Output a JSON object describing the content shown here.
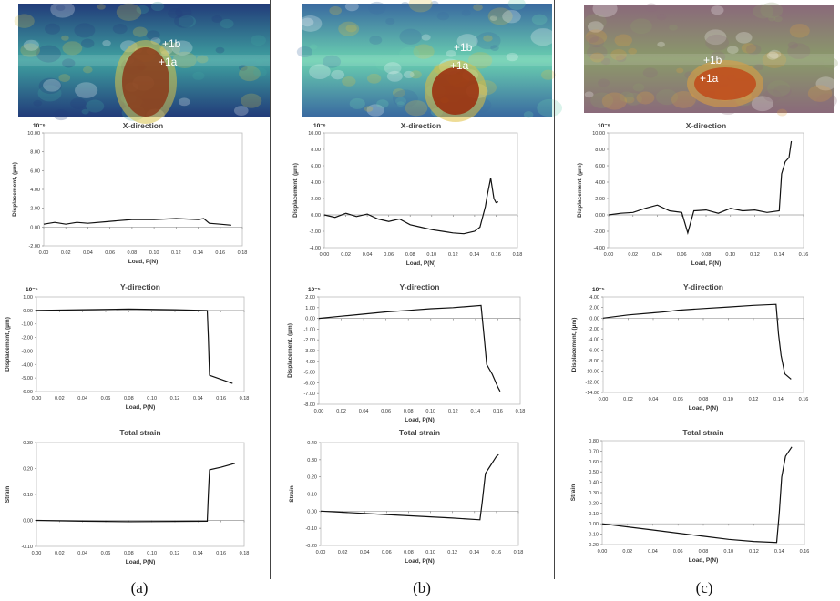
{
  "figure": {
    "captions": [
      "(a)",
      "(b)",
      "(c)"
    ],
    "point_labels": [
      "+1b",
      "+1a"
    ],
    "heatmap_colors": {
      "a": {
        "base": "#223c7a",
        "hot": "#8a3a1a",
        "warm": "#d9c24a",
        "cool": "#3fa2a0"
      },
      "b": {
        "base": "#3a6aa0",
        "hot": "#9a2a0a",
        "warm": "#e0c040",
        "cool": "#6ad0b0"
      },
      "c": {
        "base": "#8a6a7a",
        "hot": "#c04a1a",
        "warm": "#e0a040",
        "cool": "#8a9a6a"
      }
    }
  },
  "chart_data": [
    {
      "id": "a-x",
      "type": "line",
      "title": "X-direction",
      "multiplier": "10⁻⁶",
      "xlabel": "Load, P(N)",
      "ylabel": "Displacement, (µm)",
      "xlim": [
        0,
        0.18
      ],
      "xticks": [
        0,
        0.02,
        0.04,
        0.06,
        0.08,
        0.1,
        0.12,
        0.14,
        0.16,
        0.18
      ],
      "xtick_labels": [
        "0.00",
        "0.02",
        "0.04",
        "0.06",
        "0.08",
        "0.10",
        "0.12",
        "0.14",
        "0.16",
        "0.18"
      ],
      "ylim": [
        -2,
        10
      ],
      "yticks": [
        -2,
        0,
        2,
        4,
        6,
        8,
        10
      ],
      "ytick_labels": [
        "-2.00",
        "0.00",
        "2.00",
        "4.00",
        "6.00",
        "8.00",
        "10.00"
      ],
      "series": [
        {
          "name": "X-direction",
          "x": [
            0,
            0.01,
            0.02,
            0.03,
            0.04,
            0.06,
            0.08,
            0.1,
            0.12,
            0.14,
            0.145,
            0.15,
            0.16,
            0.17
          ],
          "y": [
            0.3,
            0.5,
            0.3,
            0.5,
            0.4,
            0.6,
            0.8,
            0.8,
            0.9,
            0.8,
            0.9,
            0.4,
            0.3,
            0.2
          ]
        }
      ]
    },
    {
      "id": "a-y",
      "type": "line",
      "title": "Y-direction",
      "multiplier": "10⁻⁵",
      "xlabel": "Load, P(N)",
      "ylabel": "Displacement, (µm)",
      "xlim": [
        0,
        0.18
      ],
      "xticks": [
        0,
        0.02,
        0.04,
        0.06,
        0.08,
        0.1,
        0.12,
        0.14,
        0.16,
        0.18
      ],
      "xtick_labels": [
        "0.00",
        "0.02",
        "0.04",
        "0.06",
        "0.08",
        "0.10",
        "0.12",
        "0.14",
        "0.16",
        "0.18"
      ],
      "ylim": [
        -6,
        1
      ],
      "yticks": [
        -6,
        -5,
        -4,
        -3,
        -2,
        -1,
        0,
        1
      ],
      "ytick_labels": [
        "-6.00",
        "-5.00",
        "-4.00",
        "-3.00",
        "-2.00",
        "-1.00",
        "0.00",
        "1.00"
      ],
      "series": [
        {
          "name": "Y-direction",
          "x": [
            0,
            0.04,
            0.08,
            0.12,
            0.148,
            0.149,
            0.15,
            0.17
          ],
          "y": [
            0.0,
            0.05,
            0.1,
            0.05,
            0.0,
            -2.0,
            -4.8,
            -5.4
          ]
        }
      ]
    },
    {
      "id": "a-s",
      "type": "line",
      "title": "Total strain",
      "multiplier": "",
      "xlabel": "Load, P(N)",
      "ylabel": "Strain",
      "xlim": [
        0,
        0.18
      ],
      "xticks": [
        0,
        0.02,
        0.04,
        0.06,
        0.08,
        0.1,
        0.12,
        0.14,
        0.16,
        0.18
      ],
      "xtick_labels": [
        "0.00",
        "0.02",
        "0.04",
        "0.06",
        "0.08",
        "0.10",
        "0.12",
        "0.14",
        "0.16",
        "0.18"
      ],
      "ylim": [
        -0.1,
        0.3
      ],
      "yticks": [
        -0.1,
        0,
        0.1,
        0.2,
        0.3
      ],
      "ytick_labels": [
        "-0.10",
        "0.00",
        "0.10",
        "0.20",
        "0.30"
      ],
      "series": [
        {
          "name": "Total strain",
          "x": [
            0,
            0.04,
            0.08,
            0.12,
            0.148,
            0.149,
            0.15,
            0.16,
            0.172
          ],
          "y": [
            0.0,
            -0.003,
            -0.005,
            -0.004,
            -0.003,
            0.1,
            0.195,
            0.205,
            0.22
          ]
        }
      ]
    },
    {
      "id": "b-x",
      "type": "line",
      "title": "X-direction",
      "multiplier": "10⁻⁶",
      "xlabel": "Load, P(N)",
      "ylabel": "Displacement, (µm)",
      "xlim": [
        0,
        0.18
      ],
      "xticks": [
        0,
        0.02,
        0.04,
        0.06,
        0.08,
        0.1,
        0.12,
        0.14,
        0.16,
        0.18
      ],
      "xtick_labels": [
        "0.00",
        "0.02",
        "0.04",
        "0.06",
        "0.08",
        "0.10",
        "0.12",
        "0.14",
        "0.16",
        "0.18"
      ],
      "ylim": [
        -4,
        10
      ],
      "yticks": [
        -4,
        -2,
        0,
        2,
        4,
        6,
        8,
        10
      ],
      "ytick_labels": [
        "-4.00",
        "-2.00",
        "0.00",
        "2.00",
        "4.00",
        "6.00",
        "8.00",
        "10.00"
      ],
      "series": [
        {
          "name": "X-direction",
          "x": [
            0,
            0.01,
            0.02,
            0.03,
            0.04,
            0.05,
            0.06,
            0.07,
            0.08,
            0.09,
            0.1,
            0.11,
            0.12,
            0.13,
            0.14,
            0.145,
            0.15,
            0.152,
            0.155,
            0.158,
            0.16,
            0.162
          ],
          "y": [
            0,
            -0.3,
            0.2,
            -0.2,
            0.1,
            -0.5,
            -0.8,
            -0.5,
            -1.2,
            -1.5,
            -1.8,
            -2.0,
            -2.2,
            -2.3,
            -2.0,
            -1.5,
            1.0,
            2.5,
            4.5,
            2.0,
            1.5,
            1.6
          ]
        }
      ]
    },
    {
      "id": "b-y",
      "type": "line",
      "title": "Y-direction",
      "multiplier": "10⁻⁵",
      "xlabel": "Load, P(N)",
      "ylabel": "Displacement, (µm)",
      "xlim": [
        0,
        0.18
      ],
      "xticks": [
        0,
        0.02,
        0.04,
        0.06,
        0.08,
        0.1,
        0.12,
        0.14,
        0.16,
        0.18
      ],
      "xtick_labels": [
        "0.00",
        "0.02",
        "0.04",
        "0.06",
        "0.08",
        "0.10",
        "0.12",
        "0.14",
        "0.16",
        "0.18"
      ],
      "ylim": [
        -8,
        2
      ],
      "yticks": [
        -8,
        -7,
        -6,
        -5,
        -4,
        -3,
        -2,
        -1,
        0,
        1,
        2
      ],
      "ytick_labels": [
        "-8.00",
        "-7.00",
        "-6.00",
        "-5.00",
        "-4.00",
        "-3.00",
        "-2.00",
        "-1.00",
        "0.00",
        "1.00",
        "2.00"
      ],
      "series": [
        {
          "name": "Y-direction",
          "x": [
            0,
            0.02,
            0.04,
            0.06,
            0.08,
            0.1,
            0.12,
            0.145,
            0.148,
            0.15,
            0.155,
            0.16,
            0.162
          ],
          "y": [
            0.0,
            0.2,
            0.4,
            0.6,
            0.75,
            0.9,
            1.0,
            1.2,
            -2.0,
            -4.3,
            -5.2,
            -6.4,
            -6.8
          ]
        }
      ]
    },
    {
      "id": "b-s",
      "type": "line",
      "title": "Total strain",
      "multiplier": "",
      "xlabel": "Load, P(N)",
      "ylabel": "Strain",
      "xlim": [
        0,
        0.18
      ],
      "xticks": [
        0,
        0.02,
        0.04,
        0.06,
        0.08,
        0.1,
        0.12,
        0.14,
        0.16,
        0.18
      ],
      "xtick_labels": [
        "0.00",
        "0.02",
        "0.04",
        "0.06",
        "0.08",
        "0.10",
        "0.12",
        "0.14",
        "0.16",
        "0.18"
      ],
      "ylim": [
        -0.2,
        0.4
      ],
      "yticks": [
        -0.2,
        -0.1,
        0,
        0.1,
        0.2,
        0.3,
        0.4
      ],
      "ytick_labels": [
        "-0.20",
        "-0.10",
        "0.00",
        "0.10",
        "0.20",
        "0.30",
        "0.40"
      ],
      "series": [
        {
          "name": "Total strain",
          "x": [
            0,
            0.03,
            0.06,
            0.09,
            0.12,
            0.145,
            0.147,
            0.15,
            0.155,
            0.16,
            0.162
          ],
          "y": [
            0.0,
            -0.01,
            -0.02,
            -0.03,
            -0.04,
            -0.05,
            0.05,
            0.22,
            0.27,
            0.32,
            0.33
          ]
        }
      ]
    },
    {
      "id": "c-x",
      "type": "line",
      "title": "X-direction",
      "multiplier": "10⁻⁶",
      "xlabel": "Load, P(N)",
      "ylabel": "Displacement, (µm)",
      "xlim": [
        0,
        0.16
      ],
      "xticks": [
        0,
        0.02,
        0.04,
        0.06,
        0.08,
        0.1,
        0.12,
        0.14,
        0.16
      ],
      "xtick_labels": [
        "0.00",
        "0.02",
        "0.04",
        "0.06",
        "0.08",
        "0.10",
        "0.12",
        "0.14",
        "0.16"
      ],
      "ylim": [
        -4,
        10
      ],
      "yticks": [
        -4,
        -2,
        0,
        2,
        4,
        6,
        8,
        10
      ],
      "ytick_labels": [
        "-4.00",
        "-2.00",
        "0.00",
        "2.00",
        "4.00",
        "6.00",
        "8.00",
        "10.00"
      ],
      "series": [
        {
          "name": "X-direction",
          "x": [
            0,
            0.01,
            0.02,
            0.03,
            0.04,
            0.05,
            0.06,
            0.065,
            0.07,
            0.08,
            0.09,
            0.1,
            0.11,
            0.12,
            0.13,
            0.14,
            0.142,
            0.145,
            0.148,
            0.15
          ],
          "y": [
            0,
            0.2,
            0.3,
            0.8,
            1.2,
            0.5,
            0.3,
            -2.2,
            0.5,
            0.6,
            0.2,
            0.8,
            0.5,
            0.6,
            0.3,
            0.5,
            5.0,
            6.5,
            7.0,
            9.0
          ]
        }
      ]
    },
    {
      "id": "c-y",
      "type": "line",
      "title": "Y-direction",
      "multiplier": "10⁻⁵",
      "xlabel": "Load, P(N)",
      "ylabel": "Displacement, (µm)",
      "xlim": [
        0,
        0.16
      ],
      "xticks": [
        0,
        0.02,
        0.04,
        0.06,
        0.08,
        0.1,
        0.12,
        0.14,
        0.16
      ],
      "xtick_labels": [
        "0.00",
        "0.02",
        "0.04",
        "0.06",
        "0.08",
        "0.10",
        "0.12",
        "0.14",
        "0.16"
      ],
      "ylim": [
        -14,
        4
      ],
      "yticks": [
        -14,
        -12,
        -10,
        -8,
        -6,
        -4,
        -2,
        0,
        2,
        4
      ],
      "ytick_labels": [
        "-14.00",
        "-12.00",
        "-10.00",
        "-8.00",
        "-6.00",
        "-4.00",
        "-2.00",
        "0.00",
        "2.00",
        "4.00"
      ],
      "series": [
        {
          "name": "Y-direction",
          "x": [
            0,
            0.02,
            0.04,
            0.05,
            0.06,
            0.08,
            0.1,
            0.12,
            0.138,
            0.14,
            0.142,
            0.145,
            0.15
          ],
          "y": [
            0.0,
            0.6,
            1.0,
            1.2,
            1.5,
            1.8,
            2.1,
            2.4,
            2.6,
            -3.0,
            -7.0,
            -10.5,
            -11.5
          ]
        }
      ]
    },
    {
      "id": "c-s",
      "type": "line",
      "title": "Total strain",
      "multiplier": "",
      "xlabel": "Load, P(N)",
      "ylabel": "Strain",
      "xlim": [
        0,
        0.16
      ],
      "xticks": [
        0,
        0.02,
        0.04,
        0.06,
        0.08,
        0.1,
        0.12,
        0.14,
        0.16
      ],
      "xtick_labels": [
        "0.00",
        "0.02",
        "0.04",
        "0.06",
        "0.08",
        "0.10",
        "0.12",
        "0.14",
        "0.16"
      ],
      "ylim": [
        -0.2,
        0.8
      ],
      "yticks": [
        -0.2,
        -0.1,
        0,
        0.1,
        0.2,
        0.3,
        0.4,
        0.5,
        0.6,
        0.7,
        0.8
      ],
      "ytick_labels": [
        "-0.20",
        "-0.10",
        "0.00",
        "0.10",
        "0.20",
        "0.30",
        "0.40",
        "0.50",
        "0.60",
        "0.70",
        "0.80"
      ],
      "series": [
        {
          "name": "Total strain",
          "x": [
            0,
            0.02,
            0.04,
            0.06,
            0.08,
            0.1,
            0.12,
            0.138,
            0.14,
            0.142,
            0.145,
            0.15
          ],
          "y": [
            0.0,
            -0.03,
            -0.06,
            -0.09,
            -0.12,
            -0.15,
            -0.17,
            -0.18,
            0.1,
            0.45,
            0.65,
            0.74
          ]
        }
      ]
    }
  ]
}
